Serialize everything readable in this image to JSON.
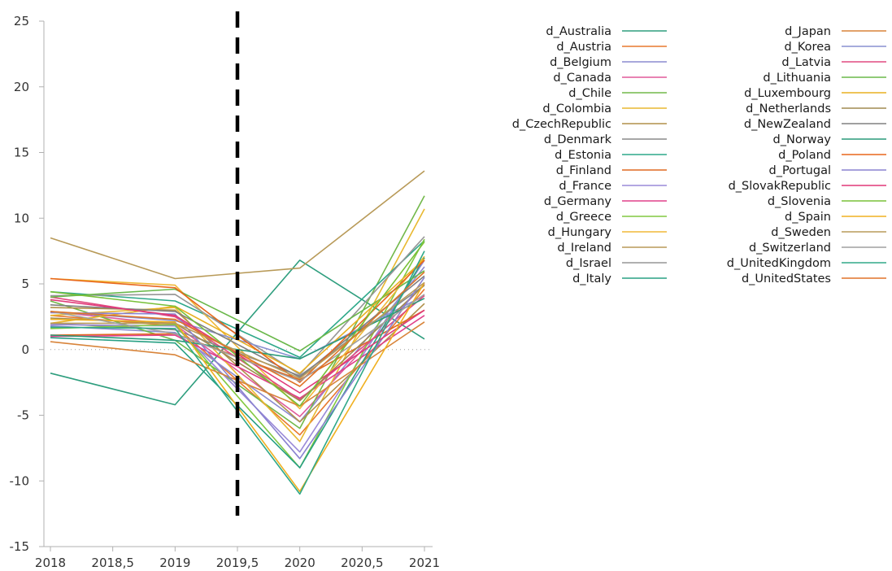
{
  "chart_data": {
    "type": "line",
    "title": "",
    "xlabel": "",
    "ylabel": "",
    "x": [
      2018,
      2019,
      2020,
      2021
    ],
    "xlim": [
      2018,
      2021
    ],
    "ylim": [
      -15,
      25
    ],
    "x_ticks": [
      "2018",
      "2018,5",
      "2019",
      "2019,5",
      "2020",
      "2020,5",
      "2021"
    ],
    "y_ticks": [
      "-15",
      "-10",
      "-5",
      "0",
      "5",
      "10",
      "15",
      "20",
      "25"
    ],
    "grid": false,
    "zero_line": "dotted",
    "vertical_marker": {
      "x": 2019.5,
      "style": "dashed",
      "color": "#000000"
    },
    "legend_position": "right, two columns",
    "series": [
      {
        "name": "d_Australia",
        "color": "#2e9e7e",
        "values": [
          -1.8,
          -4.2,
          6.8,
          0.8
        ]
      },
      {
        "name": "d_Austria",
        "color": "#e8782e",
        "values": [
          2.6,
          1.8,
          -6.5,
          4.6
        ]
      },
      {
        "name": "d_Belgium",
        "color": "#8c8cd0",
        "values": [
          1.8,
          1.3,
          -5.5,
          6.3
        ]
      },
      {
        "name": "d_Canada",
        "color": "#e05a9a",
        "values": [
          2.9,
          1.9,
          -5.1,
          5.0
        ]
      },
      {
        "name": "d_Chile",
        "color": "#72b84a",
        "values": [
          3.7,
          0.7,
          -6.0,
          11.7
        ]
      },
      {
        "name": "d_Colombia",
        "color": "#e8b830",
        "values": [
          2.6,
          3.2,
          -7.0,
          10.7
        ]
      },
      {
        "name": "d_CzechRepublic",
        "color": "#b0904a",
        "values": [
          3.2,
          3.0,
          -5.5,
          3.5
        ]
      },
      {
        "name": "d_Denmark",
        "color": "#8a8a8a",
        "values": [
          2.0,
          1.5,
          -2.0,
          4.9
        ]
      },
      {
        "name": "d_Estonia",
        "color": "#2ea88a",
        "values": [
          4.4,
          3.7,
          -0.6,
          8.3
        ]
      },
      {
        "name": "d_Finland",
        "color": "#e06a20",
        "values": [
          1.1,
          1.2,
          -2.3,
          3.0
        ]
      },
      {
        "name": "d_France",
        "color": "#9a8ad8",
        "values": [
          1.9,
          1.8,
          -7.8,
          6.8
        ]
      },
      {
        "name": "d_Germany",
        "color": "#e0408a",
        "values": [
          1.0,
          1.1,
          -3.7,
          2.6
        ]
      },
      {
        "name": "d_Greece",
        "color": "#82c840",
        "values": [
          1.6,
          1.9,
          -9.0,
          8.4
        ]
      },
      {
        "name": "d_Hungary",
        "color": "#f0b838",
        "values": [
          5.4,
          4.9,
          -4.5,
          7.1
        ]
      },
      {
        "name": "d_Ireland",
        "color": "#b89a58",
        "values": [
          8.5,
          5.4,
          6.2,
          13.6
        ]
      },
      {
        "name": "d_Israel",
        "color": "#969696",
        "values": [
          4.1,
          4.2,
          -1.9,
          8.6
        ]
      },
      {
        "name": "d_Italy",
        "color": "#28a084",
        "values": [
          0.9,
          0.5,
          -9.0,
          7.0
        ]
      },
      {
        "name": "d_Japan",
        "color": "#d8843a",
        "values": [
          0.6,
          -0.4,
          -4.3,
          2.1
        ]
      },
      {
        "name": "d_Korea",
        "color": "#8890d0",
        "values": [
          2.9,
          2.2,
          -0.7,
          4.1
        ]
      },
      {
        "name": "d_Latvia",
        "color": "#e04a80",
        "values": [
          4.0,
          2.5,
          -3.8,
          4.1
        ]
      },
      {
        "name": "d_Lithuania",
        "color": "#6ab84a",
        "values": [
          4.0,
          4.6,
          -0.1,
          6.0
        ]
      },
      {
        "name": "d_Luxembourg",
        "color": "#e8b020",
        "values": [
          2.0,
          3.3,
          -1.8,
          6.9
        ]
      },
      {
        "name": "d_Netherlands",
        "color": "#a08a50",
        "values": [
          2.4,
          2.0,
          -3.9,
          4.9
        ]
      },
      {
        "name": "d_NewZealand",
        "color": "#808080",
        "values": [
          3.4,
          2.9,
          -2.1,
          5.6
        ]
      },
      {
        "name": "d_Norway",
        "color": "#2a9a7a",
        "values": [
          1.1,
          0.7,
          -0.7,
          3.9
        ]
      },
      {
        "name": "d_Poland",
        "color": "#e8661c",
        "values": [
          5.4,
          4.7,
          -2.5,
          6.8
        ]
      },
      {
        "name": "d_Portugal",
        "color": "#8a82d0",
        "values": [
          2.8,
          2.7,
          -8.3,
          5.5
        ]
      },
      {
        "name": "d_SlovakRepublic",
        "color": "#e03878",
        "values": [
          3.8,
          2.6,
          -3.3,
          3.0
        ]
      },
      {
        "name": "d_Slovenia",
        "color": "#78c038",
        "values": [
          4.4,
          3.3,
          -4.3,
          8.2
        ]
      },
      {
        "name": "d_Spain",
        "color": "#f0b020",
        "values": [
          2.3,
          2.1,
          -10.8,
          5.1
        ]
      },
      {
        "name": "d_Sweden",
        "color": "#b89c5a",
        "values": [
          2.0,
          2.0,
          -2.2,
          5.1
        ]
      },
      {
        "name": "d_Switzerland",
        "color": "#a0a0a0",
        "values": [
          2.9,
          1.2,
          -2.4,
          4.2
        ]
      },
      {
        "name": "d_UnitedKingdom",
        "color": "#30a888",
        "values": [
          1.7,
          1.6,
          -11.0,
          7.5
        ]
      },
      {
        "name": "d_UnitedStates",
        "color": "#e07428",
        "values": [
          2.9,
          2.3,
          -2.8,
          5.9
        ]
      }
    ]
  }
}
